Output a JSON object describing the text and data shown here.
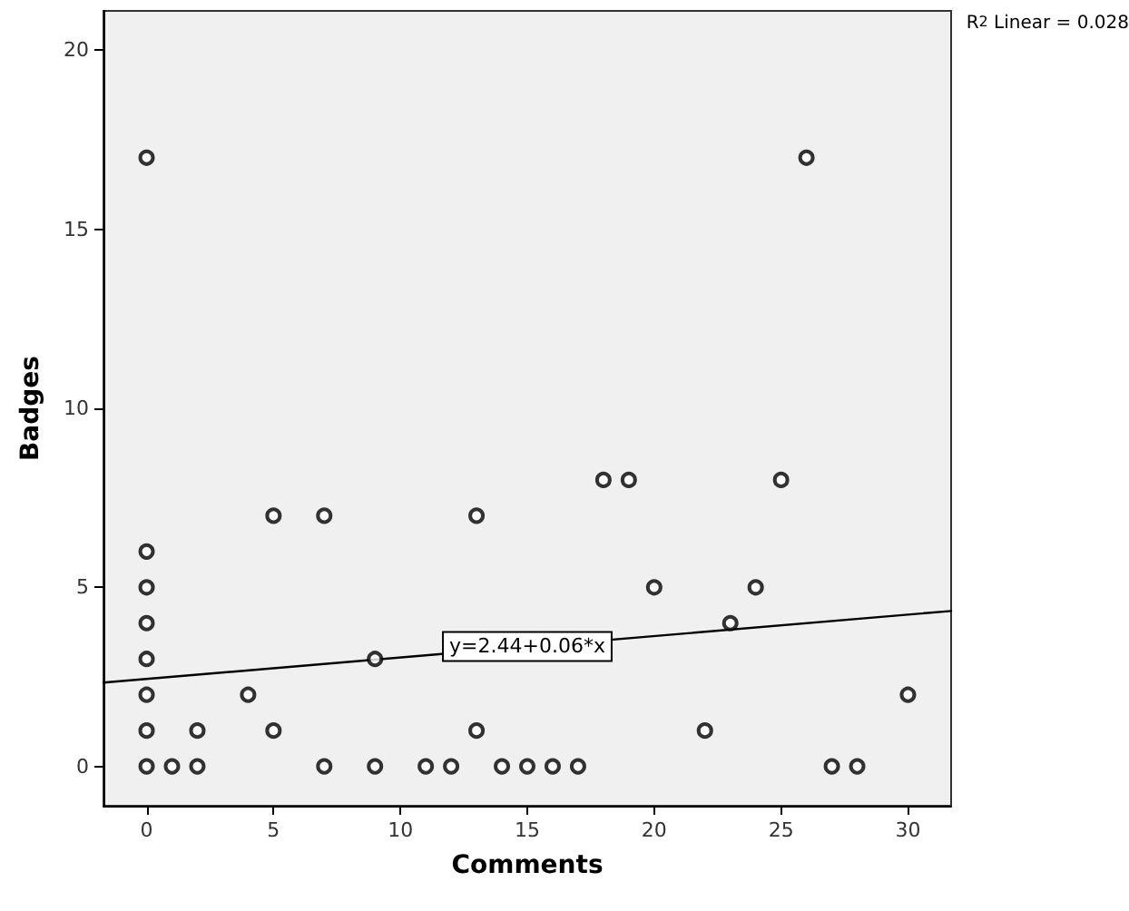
{
  "chart_data": {
    "type": "scatter",
    "xlabel": "Comments",
    "ylabel": "Badges",
    "xlim": [
      -1.7,
      31.7
    ],
    "ylim": [
      -1.1,
      21.1
    ],
    "xticks": [
      0,
      5,
      10,
      15,
      20,
      25,
      30
    ],
    "yticks": [
      0,
      5,
      10,
      15,
      20
    ],
    "grid": false,
    "series": [
      {
        "color": "#000000",
        "marker": "circle",
        "x": [
          0,
          0,
          0,
          0,
          0,
          0,
          0,
          0,
          1,
          2,
          2,
          4,
          5,
          5,
          7,
          7,
          9,
          9,
          11,
          12,
          13,
          13,
          14,
          15,
          16,
          17,
          18,
          19,
          20,
          22,
          23,
          24,
          25,
          26,
          27,
          28,
          30
        ],
        "values": [
          17,
          6,
          5,
          4,
          3,
          2,
          1,
          0,
          0,
          0,
          1,
          2,
          1,
          7,
          7,
          0,
          0,
          3,
          0,
          0,
          7,
          1,
          0,
          0,
          0,
          0,
          8,
          8,
          5,
          1,
          4,
          5,
          8,
          17,
          0,
          0,
          2
        ]
      },
      {
        "type": "line",
        "color": "#000000",
        "marker": "none",
        "line_style": "solid",
        "x": [
          -1.7,
          31.7
        ],
        "values": [
          2.34,
          4.34
        ]
      }
    ],
    "annotations": [
      {
        "text": "y=2.44+0.06*x",
        "x": 15,
        "y": 3.35
      },
      "R$^{2}$ Linear = 0.028"
    ]
  }
}
